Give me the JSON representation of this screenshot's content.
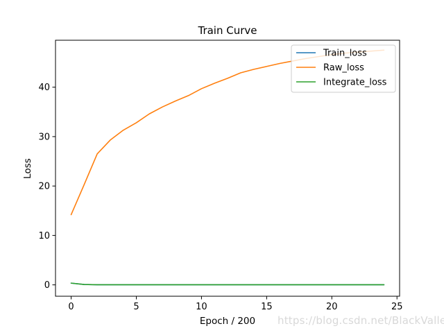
{
  "chart_data": {
    "type": "line",
    "title": "Train Curve",
    "xlabel": "Epoch / 200",
    "ylabel": "Loss",
    "xlim": [
      -1.2,
      25.2
    ],
    "ylim": [
      -2.3,
      49.5
    ],
    "xticks": [
      0,
      5,
      10,
      15,
      20,
      25
    ],
    "yticks": [
      0,
      10,
      20,
      30,
      40
    ],
    "xtick_labels": [
      "0",
      "5",
      "10",
      "15",
      "20",
      "25"
    ],
    "ytick_labels": [
      "0",
      "10",
      "20",
      "30",
      "40"
    ],
    "legend_position": "upper-right",
    "x": [
      0,
      1,
      2,
      3,
      4,
      5,
      6,
      7,
      8,
      9,
      10,
      11,
      12,
      13,
      14,
      15,
      16,
      17,
      18,
      19,
      20,
      21,
      22,
      23,
      24
    ],
    "series": [
      {
        "name": "Train_loss",
        "color": "#1f77b4",
        "values": [
          0.35,
          0.08,
          0.03,
          0.02,
          0.02,
          0.02,
          0.02,
          0.02,
          0.02,
          0.02,
          0.02,
          0.02,
          0.02,
          0.02,
          0.02,
          0.02,
          0.02,
          0.02,
          0.02,
          0.02,
          0.02,
          0.02,
          0.02,
          0.02,
          0.02
        ]
      },
      {
        "name": "Raw_loss",
        "color": "#ff7f0e",
        "values": [
          14.2,
          20.3,
          26.5,
          29.3,
          31.3,
          32.8,
          34.6,
          36.0,
          37.2,
          38.3,
          39.7,
          40.8,
          41.8,
          42.9,
          43.6,
          44.2,
          44.8,
          45.3,
          45.8,
          46.2,
          46.6,
          46.9,
          47.1,
          47.3,
          47.5
        ]
      },
      {
        "name": "Integrate_loss",
        "color": "#2ca02c",
        "values": [
          0.35,
          0.08,
          0.03,
          0.02,
          0.02,
          0.02,
          0.02,
          0.02,
          0.02,
          0.02,
          0.02,
          0.02,
          0.02,
          0.02,
          0.02,
          0.02,
          0.02,
          0.02,
          0.02,
          0.02,
          0.02,
          0.02,
          0.02,
          0.02,
          0.02
        ]
      }
    ]
  },
  "watermark": "https://blog.csdn.net/BlackValley"
}
